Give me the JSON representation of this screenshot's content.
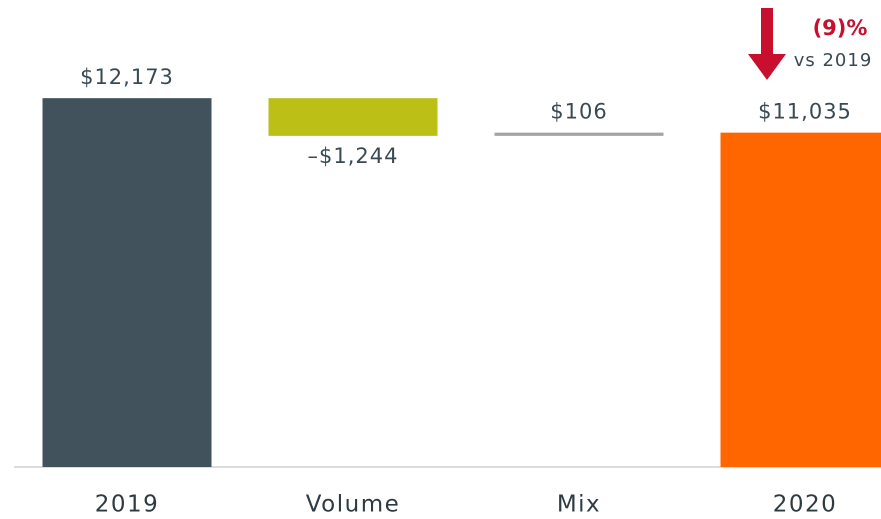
{
  "chart_data": {
    "type": "waterfall",
    "categories": [
      "2019",
      "Volume",
      "Mix",
      "2020"
    ],
    "measure": [
      "absolute",
      "relative",
      "relative",
      "total"
    ],
    "values": [
      12173,
      -1244,
      106,
      11035
    ],
    "value_labels": [
      "$12,173",
      "–$1,244",
      "$106",
      "$11,035"
    ],
    "colors": [
      "#41525c",
      "#bcbf15",
      "#a3a3a3",
      "#ff6600"
    ],
    "ylim": [
      0,
      15000
    ],
    "annotation": {
      "text": "(9)%",
      "subtext": "vs 2019",
      "color": "#c8102e"
    }
  }
}
